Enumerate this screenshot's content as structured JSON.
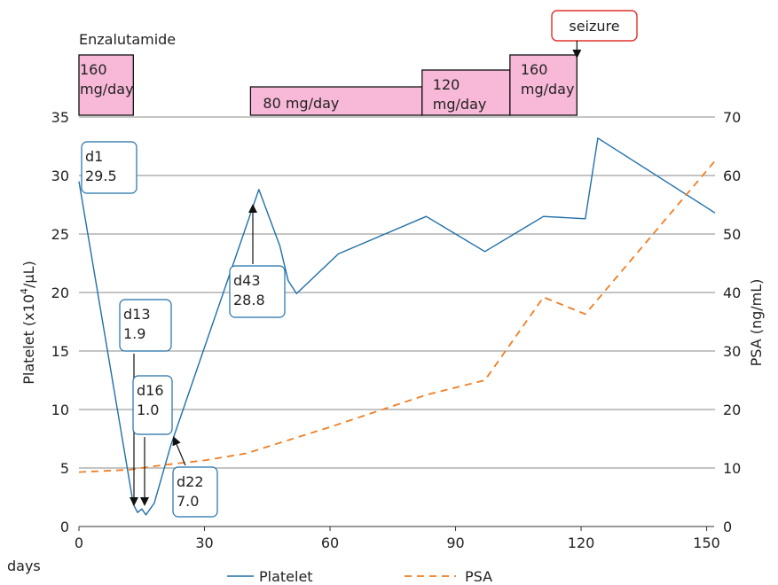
{
  "chart_data": {
    "type": "line",
    "x": {
      "label": "days",
      "range": [
        0,
        152
      ],
      "ticks": [
        0,
        30,
        60,
        90,
        120,
        150
      ]
    },
    "y_left": {
      "label": "Platelet (x10",
      "label_sup": "4",
      "label_suffix": "/μL)",
      "range": [
        0,
        35
      ],
      "ticks": [
        0,
        5,
        10,
        15,
        20,
        25,
        30,
        35
      ],
      "grid": true
    },
    "y_right": {
      "label": "PSA (ng/mL)",
      "range": [
        0,
        70
      ],
      "ticks": [
        0,
        10,
        20,
        30,
        40,
        50,
        60,
        70
      ]
    },
    "series": [
      {
        "name": "Platelet",
        "axis": "left",
        "color": "#1f6fa8",
        "style": "solid",
        "points": [
          [
            0,
            29.5
          ],
          [
            13,
            1.9
          ],
          [
            14,
            1.2
          ],
          [
            15,
            1.5
          ],
          [
            16,
            1.0
          ],
          [
            18,
            2.0
          ],
          [
            22,
            7.0
          ],
          [
            43,
            28.8
          ],
          [
            48,
            24.0
          ],
          [
            50,
            21.0
          ],
          [
            52,
            19.9
          ],
          [
            62,
            23.3
          ],
          [
            83,
            26.5
          ],
          [
            97,
            23.5
          ],
          [
            111,
            26.5
          ],
          [
            121,
            26.3
          ],
          [
            124,
            33.2
          ],
          [
            152,
            26.8
          ]
        ]
      },
      {
        "name": "PSA",
        "axis": "right",
        "color": "#f07d22",
        "style": "dashed",
        "points": [
          [
            0,
            9.3
          ],
          [
            6,
            9.5
          ],
          [
            12,
            9.7
          ],
          [
            20,
            10.5
          ],
          [
            30,
            11.3
          ],
          [
            40,
            12.5
          ],
          [
            60,
            17.0
          ],
          [
            83,
            22.5
          ],
          [
            97,
            25.0
          ],
          [
            111,
            39.2
          ],
          [
            121,
            36.3
          ],
          [
            152,
            62.5
          ]
        ]
      }
    ],
    "annotations": [
      {
        "day": "d1",
        "value": "29.5"
      },
      {
        "day": "d13",
        "value": "1.9"
      },
      {
        "day": "d16",
        "value": "1.0"
      },
      {
        "day": "d22",
        "value": "7.0"
      },
      {
        "day": "d43",
        "value": "28.8"
      }
    ],
    "treatment": {
      "label": "Enzalutamide",
      "color": "#f8b8d8",
      "doses": [
        {
          "start": 0,
          "end": 13,
          "label_line1": "160",
          "label_line2": "mg/day"
        },
        {
          "start": 41,
          "end": 82,
          "label_line1": "80 mg/day",
          "label_line2": ""
        },
        {
          "start": 82,
          "end": 103,
          "label_line1": "120",
          "label_line2": "mg/day"
        },
        {
          "start": 103,
          "end": 119,
          "label_line1": "160",
          "label_line2": "mg/day"
        }
      ]
    },
    "event": {
      "label": "seizure",
      "day": 119,
      "color": "#e0302a"
    }
  },
  "legend": {
    "platelet_label": "Platelet",
    "psa_label": "PSA",
    "placement": "bottom-center"
  }
}
